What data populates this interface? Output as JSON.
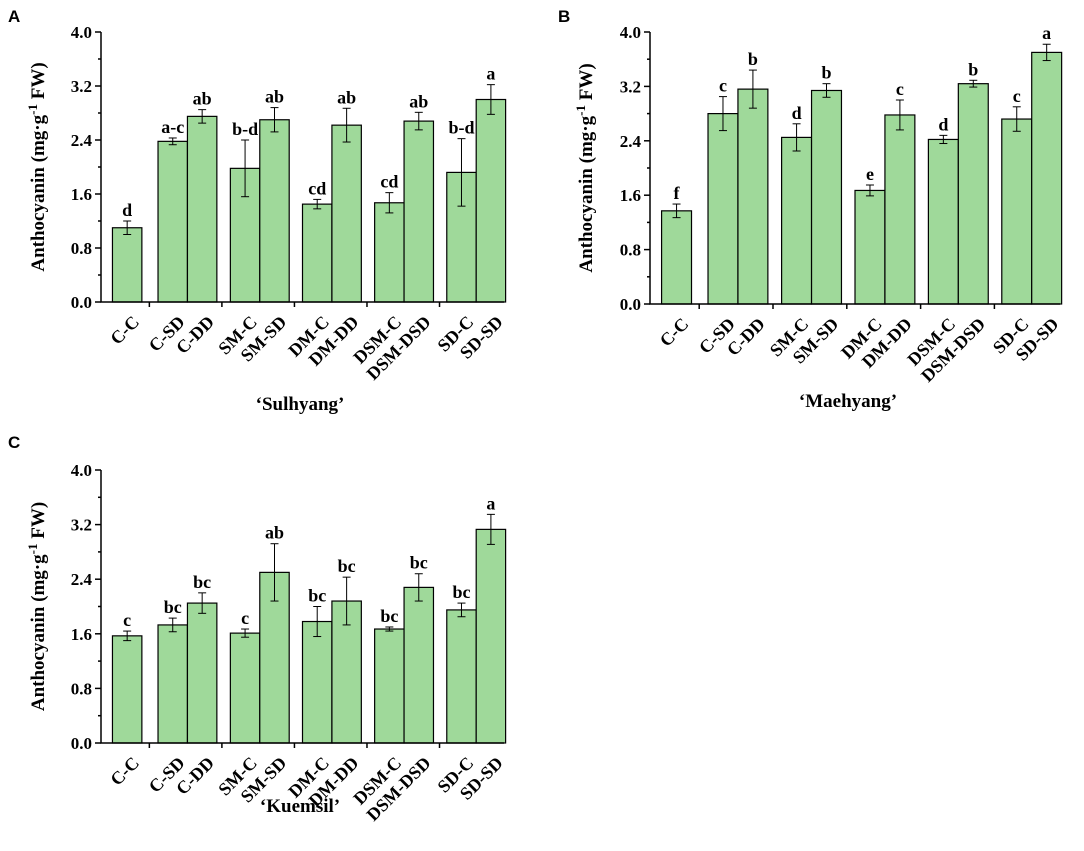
{
  "chart_data": [
    {
      "type": "bar",
      "panel": "A",
      "ylabel_main": "Anthocyanin (mg·g",
      "ylabel_sup": "-1",
      "ylabel_end": " FW)",
      "xlabel": "‘Sulhyang’",
      "ylim": [
        0,
        4.0
      ],
      "yticks": [
        "0.0",
        "0.8",
        "1.6",
        "2.4",
        "3.2",
        "4.0"
      ],
      "categories": [
        "C-C",
        "C-SD",
        "C-DD",
        "SM-C",
        "SM-SD",
        "DM-C",
        "DM-DD",
        "DSM-C",
        "DSM-DSD",
        "SD-C",
        "SD-SD"
      ],
      "values": [
        1.1,
        2.38,
        2.75,
        1.98,
        2.7,
        1.45,
        2.62,
        1.47,
        2.68,
        1.92,
        3.0
      ],
      "errors": [
        0.1,
        0.05,
        0.1,
        0.42,
        0.18,
        0.07,
        0.25,
        0.15,
        0.13,
        0.5,
        0.22
      ],
      "letters": [
        "d",
        "a-c",
        "ab",
        "b-d",
        "ab",
        "cd",
        "ab",
        "cd",
        "ab",
        "b-d",
        "a"
      ]
    },
    {
      "type": "bar",
      "panel": "B",
      "ylabel_main": "Anthocyanin (mg·g",
      "ylabel_sup": "-1",
      "ylabel_end": " FW)",
      "xlabel": "‘Maehyang’",
      "ylim": [
        0,
        4.0
      ],
      "yticks": [
        "0.0",
        "0.8",
        "1.6",
        "2.4",
        "3.2",
        "4.0"
      ],
      "categories": [
        "C-C",
        "C-SD",
        "C-DD",
        "SM-C",
        "SM-SD",
        "DM-C",
        "DM-DD",
        "DSM-C",
        "DSM-DSD",
        "SD-C",
        "SD-SD"
      ],
      "values": [
        1.37,
        2.8,
        3.16,
        2.45,
        3.14,
        1.67,
        2.78,
        2.42,
        3.24,
        2.72,
        3.7
      ],
      "errors": [
        0.1,
        0.25,
        0.28,
        0.2,
        0.1,
        0.08,
        0.22,
        0.06,
        0.05,
        0.18,
        0.12
      ],
      "letters": [
        "f",
        "c",
        "b",
        "d",
        "b",
        "e",
        "c",
        "d",
        "b",
        "c",
        "a"
      ]
    },
    {
      "type": "bar",
      "panel": "C",
      "ylabel_main": "Anthocyanin (mg·g",
      "ylabel_sup": "-1",
      "ylabel_end": " FW)",
      "xlabel": "‘Kuemsil’",
      "ylim": [
        0,
        4.0
      ],
      "yticks": [
        "0.0",
        "0.8",
        "1.6",
        "2.4",
        "3.2",
        "4.0"
      ],
      "categories": [
        "C-C",
        "C-SD",
        "C-DD",
        "SM-C",
        "SM-SD",
        "DM-C",
        "DM-DD",
        "DSM-C",
        "DSM-DSD",
        "SD-C",
        "SD-SD"
      ],
      "values": [
        1.57,
        1.73,
        2.05,
        1.61,
        2.5,
        1.78,
        2.08,
        1.67,
        2.28,
        1.95,
        3.13
      ],
      "errors": [
        0.07,
        0.1,
        0.15,
        0.06,
        0.42,
        0.22,
        0.35,
        0.03,
        0.2,
        0.1,
        0.22
      ],
      "letters": [
        "c",
        "bc",
        "bc",
        "c",
        "ab",
        "bc",
        "bc",
        "bc",
        "bc",
        "bc",
        "a"
      ]
    }
  ],
  "colors": {
    "bar_fill": "#9fd99a",
    "bar_stroke": "#000000"
  }
}
